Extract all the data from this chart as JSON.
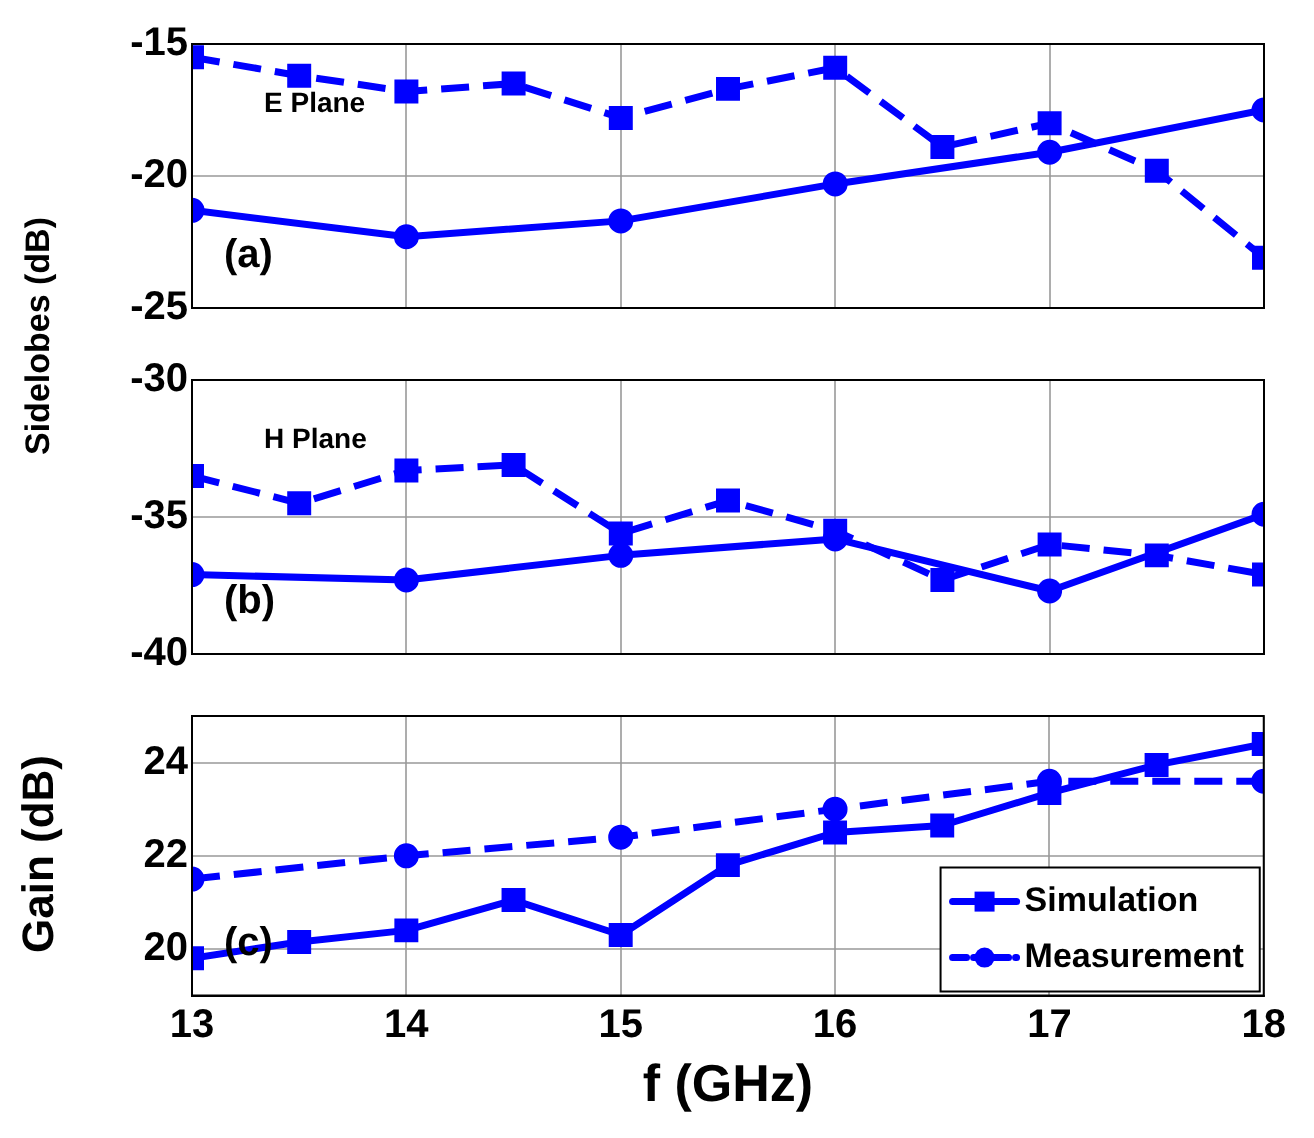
{
  "chart_data": [
    {
      "type": "line",
      "ylabel": "Sidelobes (dB)",
      "annotations": [
        "E Plane",
        "(a)"
      ],
      "xlim": [
        13,
        18
      ],
      "xticks": [
        13,
        14,
        15,
        16,
        17,
        18
      ],
      "ylim": [
        -25,
        -15
      ],
      "yticks": [
        -25,
        -20,
        -15
      ],
      "grid": true,
      "tick_labels": "y",
      "series": [
        {
          "color": "#0000ff",
          "marker": "circle",
          "line_style": "solid",
          "x": [
            13,
            14,
            15,
            16,
            17,
            18
          ],
          "values": [
            -21.3,
            -22.3,
            -21.7,
            -20.3,
            -19.1,
            -17.5
          ]
        },
        {
          "color": "#0000ff",
          "marker": "square",
          "line_style": "dashed",
          "x": [
            13,
            13.5,
            14,
            14.5,
            15,
            15.5,
            16,
            16.5,
            17,
            17.5,
            18
          ],
          "values": [
            -15.5,
            -16.2,
            -16.8,
            -16.5,
            -17.8,
            -16.7,
            -15.9,
            -18.9,
            -18.0,
            -19.8,
            -23.1
          ]
        }
      ]
    },
    {
      "type": "line",
      "annotations": [
        "H Plane",
        "(b)"
      ],
      "xlim": [
        13,
        18
      ],
      "xticks": [
        13,
        14,
        15,
        16,
        17,
        18
      ],
      "ylim": [
        -40,
        -30
      ],
      "yticks": [
        -40,
        -35,
        -30
      ],
      "grid": true,
      "tick_labels": "y",
      "series": [
        {
          "color": "#0000ff",
          "marker": "circle",
          "line_style": "solid",
          "x": [
            13,
            14,
            15,
            16,
            17,
            18
          ],
          "values": [
            -37.1,
            -37.3,
            -36.4,
            -35.8,
            -37.7,
            -34.9
          ]
        },
        {
          "color": "#0000ff",
          "marker": "square",
          "line_style": "dashed",
          "x": [
            13,
            13.5,
            14,
            14.5,
            15,
            15.5,
            16,
            16.5,
            17,
            17.5,
            18
          ],
          "values": [
            -33.5,
            -34.5,
            -33.3,
            -33.1,
            -35.6,
            -34.4,
            -35.5,
            -37.3,
            -36.0,
            -36.4,
            -37.1
          ]
        }
      ]
    },
    {
      "type": "line",
      "xlabel": "f (GHz)",
      "ylabel": "Gain (dB)",
      "annotations": [
        "(c)"
      ],
      "xlim": [
        13,
        18
      ],
      "xticks": [
        13,
        14,
        15,
        16,
        17,
        18
      ],
      "ylim": [
        19,
        25
      ],
      "yticks": [
        20,
        22,
        24
      ],
      "grid": true,
      "legend": "bottom right",
      "series": [
        {
          "name": "Simulation",
          "color": "#0000ff",
          "marker": "square",
          "line_style": "solid",
          "x": [
            13,
            13.5,
            14,
            14.5,
            15,
            15.5,
            16,
            16.5,
            17,
            17.5,
            18
          ],
          "values": [
            19.8,
            20.15,
            20.4,
            21.05,
            20.3,
            21.8,
            22.5,
            22.65,
            23.35,
            23.95,
            24.4
          ]
        },
        {
          "name": "Measurement",
          "color": "#0000ff",
          "marker": "circle",
          "line_style": "dashed",
          "x": [
            13,
            14,
            15,
            16,
            17,
            18
          ],
          "values": [
            21.5,
            22.0,
            22.4,
            23.0,
            23.6,
            23.6
          ]
        }
      ]
    }
  ]
}
